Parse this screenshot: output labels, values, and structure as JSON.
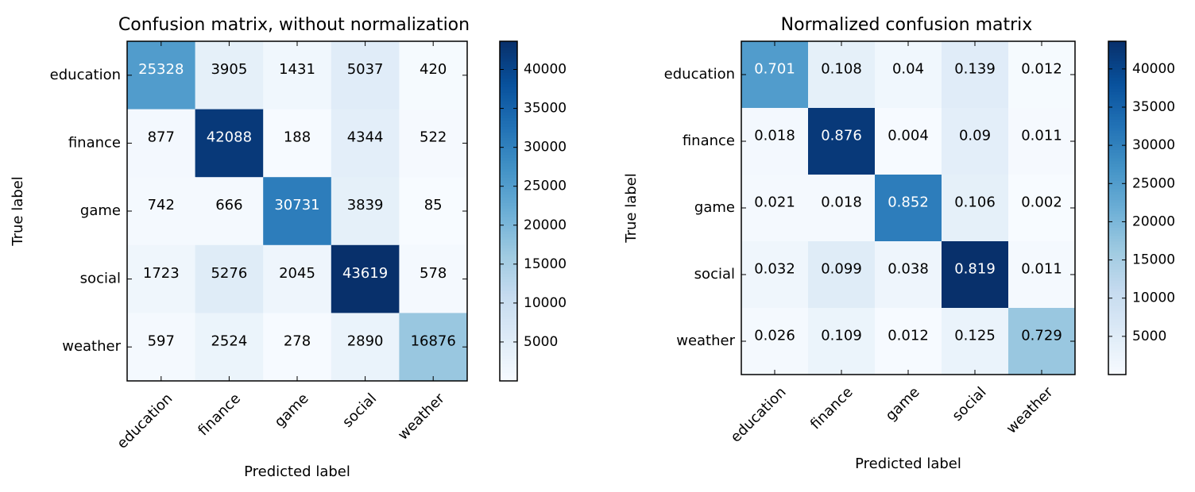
{
  "chart_data": [
    {
      "type": "heatmap",
      "title": "Confusion matrix, without normalization",
      "xlabel": "Predicted label",
      "ylabel": "True label",
      "x_categories": [
        "education",
        "finance",
        "game",
        "social",
        "weather"
      ],
      "y_categories": [
        "education",
        "finance",
        "game",
        "social",
        "weather"
      ],
      "values": [
        [
          25328,
          3905,
          1431,
          5037,
          420
        ],
        [
          877,
          42088,
          188,
          4344,
          522
        ],
        [
          742,
          666,
          30731,
          3839,
          85
        ],
        [
          1723,
          5276,
          2045,
          43619,
          578
        ],
        [
          597,
          2524,
          278,
          2890,
          16876
        ]
      ],
      "cell_labels": [
        [
          "25328",
          "3905",
          "1431",
          "5037",
          "420"
        ],
        [
          "877",
          "42088",
          "188",
          "4344",
          "522"
        ],
        [
          "742",
          "666",
          "30731",
          "3839",
          "85"
        ],
        [
          "1723",
          "5276",
          "2045",
          "43619",
          "578"
        ],
        [
          "597",
          "2524",
          "278",
          "2890",
          "16876"
        ]
      ],
      "colormap": "Blues",
      "colorbar": {
        "range": [
          0,
          43619
        ],
        "ticks": [
          5000,
          10000,
          15000,
          20000,
          25000,
          30000,
          35000,
          40000
        ],
        "tick_labels": [
          "5000",
          "10000",
          "15000",
          "20000",
          "25000",
          "30000",
          "35000",
          "40000"
        ]
      }
    },
    {
      "type": "heatmap",
      "title": "Normalized confusion matrix",
      "xlabel": "Predicted label",
      "ylabel": "True label",
      "x_categories": [
        "education",
        "finance",
        "game",
        "social",
        "weather"
      ],
      "y_categories": [
        "education",
        "finance",
        "game",
        "social",
        "weather"
      ],
      "values": [
        [
          25328,
          3905,
          1431,
          5037,
          420
        ],
        [
          877,
          42088,
          188,
          4344,
          522
        ],
        [
          742,
          666,
          30731,
          3839,
          85
        ],
        [
          1723,
          5276,
          2045,
          43619,
          578
        ],
        [
          597,
          2524,
          278,
          2890,
          16876
        ]
      ],
      "cell_labels": [
        [
          "0.701",
          "0.108",
          "0.04",
          "0.139",
          "0.012"
        ],
        [
          "0.018",
          "0.876",
          "0.004",
          "0.09",
          "0.011"
        ],
        [
          "0.021",
          "0.018",
          "0.852",
          "0.106",
          "0.002"
        ],
        [
          "0.032",
          "0.099",
          "0.038",
          "0.819",
          "0.011"
        ],
        [
          "0.026",
          "0.109",
          "0.012",
          "0.125",
          "0.729"
        ]
      ],
      "colormap": "Blues",
      "colorbar": {
        "range": [
          0,
          43619
        ],
        "ticks": [
          5000,
          10000,
          15000,
          20000,
          25000,
          30000,
          35000,
          40000
        ],
        "tick_labels": [
          "5000",
          "10000",
          "15000",
          "20000",
          "25000",
          "30000",
          "35000",
          "40000"
        ]
      }
    }
  ]
}
